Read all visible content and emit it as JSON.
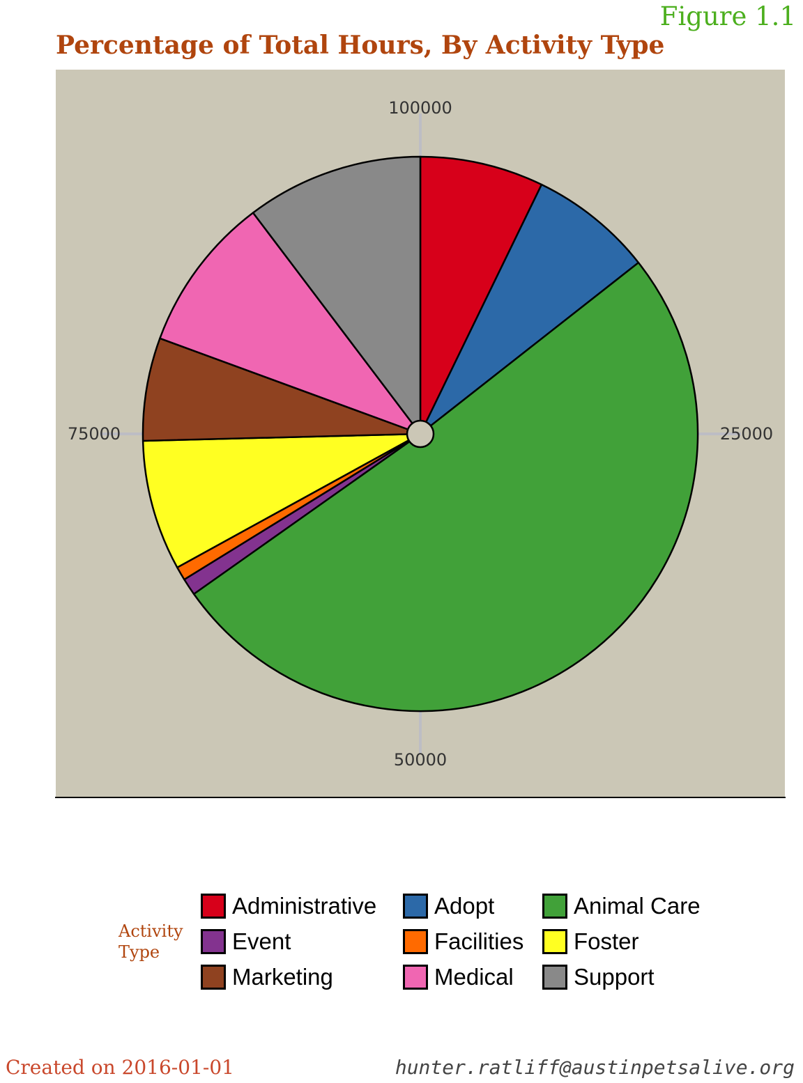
{
  "figure_label": "Figure 1.1",
  "title": "Percentage of Total Hours, By Activity Type",
  "legend": {
    "title_line1": "Activity",
    "title_line2": "Type",
    "items": [
      {
        "label": "Administrative",
        "color": "#d7001a"
      },
      {
        "label": "Adopt",
        "color": "#2c69a8"
      },
      {
        "label": "Animal Care",
        "color": "#41a139"
      },
      {
        "label": "Event",
        "color": "#83338f"
      },
      {
        "label": "Facilities",
        "color": "#ff6a00"
      },
      {
        "label": "Foster",
        "color": "#ffff22"
      },
      {
        "label": "Marketing",
        "color": "#8f4220"
      },
      {
        "label": "Medical",
        "color": "#f066b2"
      },
      {
        "label": "Support",
        "color": "#898989"
      }
    ]
  },
  "footer": {
    "created": "Created on 2016-01-01",
    "email": "hunter.ratliff@austinpetsalive.org"
  },
  "colors": {
    "panel_background": "#cbc7b6",
    "title": "#b0450e",
    "figure_label": "#4caf1e",
    "grid": "#bdbdc4"
  },
  "chart_data": {
    "type": "pie",
    "title": "Percentage of Total Hours, By Activity Type",
    "legend_title": "Activity Type",
    "legend_position": "bottom",
    "total": 100000,
    "radial_ticks": [
      {
        "value": 100000,
        "label": "100000"
      },
      {
        "value": 25000,
        "label": "25000"
      },
      {
        "value": 50000,
        "label": "50000"
      },
      {
        "value": 75000,
        "label": "75000"
      }
    ],
    "slices": [
      {
        "label": "Administrative",
        "value": 7200
      },
      {
        "label": "Adopt",
        "value": 7200
      },
      {
        "label": "Animal Care",
        "value": 50800
      },
      {
        "label": "Event",
        "value": 1000
      },
      {
        "label": "Facilities",
        "value": 800
      },
      {
        "label": "Foster",
        "value": 7600
      },
      {
        "label": "Marketing",
        "value": 6000
      },
      {
        "label": "Medical",
        "value": 9100
      },
      {
        "label": "Support",
        "value": 10300
      }
    ]
  }
}
